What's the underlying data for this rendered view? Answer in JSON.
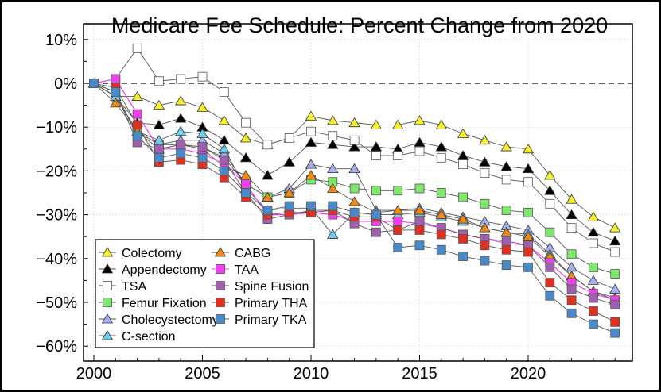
{
  "chart_data": {
    "type": "line",
    "title": "Medicare Fee Schedule: Percent Change from 2020",
    "xlabel": "",
    "ylabel": "",
    "xlim": [
      2000,
      2024
    ],
    "ylim": [
      -62,
      10
    ],
    "xticks": [
      2000,
      2005,
      2010,
      2015,
      2020
    ],
    "yticks": [
      10,
      0,
      -10,
      -20,
      -30,
      -40,
      -50,
      -60
    ],
    "ytick_labels": [
      "10%",
      "0%",
      "−10%",
      "−20%",
      "−30%",
      "−40%",
      "−50%",
      "−60%"
    ],
    "grid": true,
    "reference_line": 0,
    "legend_position": "bottom-left",
    "x": [
      2000,
      2001,
      2002,
      2003,
      2004,
      2005,
      2006,
      2007,
      2008,
      2009,
      2010,
      2011,
      2012,
      2013,
      2014,
      2015,
      2016,
      2017,
      2018,
      2019,
      2020,
      2021,
      2022,
      2023,
      2024
    ],
    "series": [
      {
        "name": "Colectomy",
        "marker": "triangle",
        "color": "#f5ef2e",
        "values": [
          0,
          -3,
          -3,
          -5,
          -4,
          -5.5,
          -8.5,
          -12.5,
          -14,
          -12.5,
          -7.5,
          -8.5,
          -9,
          -9.5,
          -9.5,
          -8.5,
          -9.5,
          -11.5,
          -13,
          -14.5,
          -15,
          -21,
          -26.5,
          -30.5,
          -33
        ]
      },
      {
        "name": "Appendectomy",
        "marker": "triangle",
        "color": "#000000",
        "values": [
          0,
          -3,
          -9,
          -9.5,
          -8,
          -10,
          -13,
          -17,
          -21,
          -18,
          -13.5,
          -14,
          -14.5,
          -14.5,
          -15,
          -13.5,
          -14.5,
          -16.5,
          -18,
          -19,
          -19.5,
          -24.5,
          -30,
          -34,
          -36
        ]
      },
      {
        "name": "TSA",
        "marker": "square",
        "color": "#ffffff",
        "values": [
          0,
          1,
          8,
          0.5,
          1,
          1.5,
          -2,
          -9,
          -14,
          -12.5,
          -11,
          -12,
          -13,
          -16.5,
          -16.5,
          -15.5,
          -17,
          -18.5,
          -20.5,
          -22,
          -22.5,
          -27.5,
          -33,
          -36.5,
          -38.5
        ]
      },
      {
        "name": "Femur Fixation",
        "marker": "square",
        "color": "#7de86a",
        "values": [
          0,
          -3,
          -11,
          -14,
          -14,
          -14.5,
          -17,
          -23,
          -26,
          -25,
          -22,
          -22.5,
          -24,
          -24.5,
          -24.5,
          -24,
          -25,
          -26,
          -27.5,
          -29,
          -29.5,
          -34,
          -39,
          -42,
          -43.5
        ]
      },
      {
        "name": "Cholecystectomy",
        "marker": "triangle",
        "color": "#a4b0ef",
        "values": [
          0,
          -3,
          -11,
          -14,
          -13,
          -13,
          -16,
          -23,
          -26,
          -24,
          -18.5,
          -19.5,
          -19.5,
          -29,
          -29,
          -28.5,
          -29.5,
          -30.5,
          -31.5,
          -32.5,
          -33.5,
          -37.5,
          -42,
          -45,
          -47
        ]
      },
      {
        "name": "C-section",
        "marker": "triangle",
        "color": "#6fcdf0",
        "values": [
          0,
          -3,
          -11,
          -13,
          -11,
          -11.5,
          -15,
          -24,
          -29,
          -28.5,
          -28.5,
          -34.5,
          -29.5,
          -30,
          -30,
          -29.5,
          -30.5,
          -31.5,
          -33,
          -34,
          -34.5,
          -39,
          -44,
          -47.5,
          -49.5
        ]
      },
      {
        "name": "CABG",
        "marker": "triangle",
        "color": "#f08a12",
        "values": [
          0,
          -4.5,
          -11,
          -15,
          -14,
          -15,
          -19,
          -21,
          -26,
          -25,
          -21,
          -24,
          -27,
          -29.5,
          -29,
          -29,
          -30,
          -31,
          -33,
          -34,
          -35,
          -39.5,
          -44,
          -47.5,
          -49
        ]
      },
      {
        "name": "TAA",
        "marker": "square",
        "color": "#f040f0",
        "values": [
          0,
          1,
          -7,
          -15,
          -15,
          -16,
          -18.5,
          -23,
          -30,
          -30,
          -29.5,
          -30,
          -31.5,
          -31.5,
          -31.5,
          -32,
          -33,
          -34.5,
          -35.5,
          -36.5,
          -37,
          -41,
          -45.5,
          -48,
          -49.5
        ]
      },
      {
        "name": "Spine Fusion",
        "marker": "square",
        "color": "#a060b0",
        "values": [
          0,
          -2,
          -13.5,
          -15,
          -14,
          -14.5,
          -17.5,
          -25,
          -31,
          -30,
          -29,
          -29,
          -32,
          -34,
          -33.5,
          -31.5,
          -33,
          -34.5,
          -35.5,
          -36,
          -37,
          -42,
          -47,
          -49,
          -50.5
        ]
      },
      {
        "name": "Primary THA",
        "marker": "square",
        "color": "#e03020",
        "values": [
          0,
          -1,
          -9.5,
          -18,
          -17.5,
          -18.5,
          -21.5,
          -26,
          -30,
          -29.5,
          -29.5,
          -29,
          -30.5,
          -30.5,
          -33.5,
          -33.5,
          -34.5,
          -35.5,
          -37,
          -38,
          -38.5,
          -45.5,
          -49.5,
          -52,
          -54.5
        ]
      },
      {
        "name": "Primary TKA",
        "marker": "square",
        "color": "#4a8ac8",
        "values": [
          0,
          -2,
          -12,
          -17,
          -16,
          -17,
          -20,
          -25,
          -29,
          -28,
          -28,
          -28,
          -29.5,
          -30,
          -37.5,
          -37,
          -38,
          -39.5,
          -40.5,
          -41.5,
          -42,
          -48.5,
          -52.5,
          -55,
          -57
        ]
      }
    ]
  }
}
